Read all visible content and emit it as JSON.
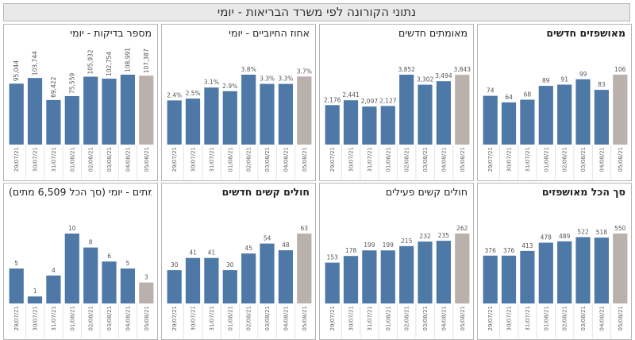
{
  "page": {
    "title": "נתוני הקורונה לפי משרד הבריאות - יומי"
  },
  "colors": {
    "bar": "#4e79a7",
    "last_bar": "#bab0ac",
    "title_bg": "#e9e9e9"
  },
  "chart_data": [
    {
      "type": "bar",
      "title": "מאושפזים חדשים",
      "title_bold": true,
      "categories": [
        "29/07/21",
        "30/07/21",
        "31/07/21",
        "01/08/21",
        "02/08/21",
        "03/08/21",
        "04/08/21",
        "05/08/21"
      ],
      "values": [
        74,
        64,
        68,
        89,
        91,
        99,
        83,
        106
      ],
      "labels": [
        "74",
        "64",
        "68",
        "89",
        "91",
        "99",
        "83",
        "106"
      ],
      "highlight_last": true
    },
    {
      "type": "bar",
      "title": "מאומתים חדשים",
      "title_bold": false,
      "categories": [
        "29/07/21",
        "30/07/21",
        "31/07/21",
        "01/08/21",
        "02/08/21",
        "03/08/21",
        "04/08/21",
        "05/08/21"
      ],
      "values": [
        2176,
        2441,
        2097,
        2127,
        3852,
        3302,
        3494,
        3843
      ],
      "labels": [
        "2,176",
        "2,441",
        "2,097",
        "2,127",
        "3,852",
        "3,302",
        "3,494",
        "3,843"
      ],
      "highlight_last": true
    },
    {
      "type": "bar",
      "title": "אחוז החיוביים - יומי",
      "title_bold": false,
      "categories": [
        "29/07/21",
        "30/07/21",
        "31/07/21",
        "01/08/21",
        "02/08/21",
        "03/08/21",
        "04/08/21",
        "05/08/21"
      ],
      "values": [
        2.4,
        2.5,
        3.1,
        2.9,
        3.8,
        3.3,
        3.3,
        3.7
      ],
      "labels": [
        "2.4%",
        "2.5%",
        "3.1%",
        "2.9%",
        "3.8%",
        "3.3%",
        "3.3%",
        "3.7%"
      ],
      "highlight_last": true
    },
    {
      "type": "bar",
      "title": "מספר בדיקות - יומי",
      "title_bold": false,
      "categories": [
        "29/07/21",
        "30/07/21",
        "31/07/21",
        "01/08/21",
        "02/08/21",
        "03/08/21",
        "04/08/21",
        "05/08/21"
      ],
      "values": [
        95044,
        103744,
        69422,
        75559,
        105932,
        102754,
        108991,
        107387
      ],
      "labels": [
        "95,044",
        "103,744",
        "69,422",
        "75,559",
        "105,932",
        "102,754",
        "108,991",
        "107,387"
      ],
      "labels_rotated": true,
      "highlight_last": true
    },
    {
      "type": "bar",
      "title": "סך הכל מאושפזים",
      "title_bold": true,
      "categories": [
        "29/07/21",
        "30/07/21",
        "31/07/21",
        "01/08/21",
        "02/08/21",
        "03/08/21",
        "04/08/21",
        "05/08/21"
      ],
      "values": [
        376,
        376,
        413,
        478,
        489,
        522,
        518,
        550
      ],
      "labels": [
        "376",
        "376",
        "413",
        "478",
        "489",
        "522",
        "518",
        "550"
      ],
      "highlight_last": true
    },
    {
      "type": "bar",
      "title": "חולים קשים פעילים",
      "title_bold": false,
      "categories": [
        "29/07/21",
        "30/07/21",
        "31/07/21",
        "01/08/21",
        "02/08/21",
        "03/08/21",
        "04/08/21",
        "05/08/21"
      ],
      "values": [
        153,
        178,
        199,
        199,
        215,
        232,
        235,
        262
      ],
      "labels": [
        "153",
        "178",
        "199",
        "199",
        "215",
        "232",
        "235",
        "262"
      ],
      "highlight_last": true
    },
    {
      "type": "bar",
      "title": "חולים קשים חדשים",
      "title_bold": true,
      "categories": [
        "29/07/21",
        "30/07/21",
        "31/07/21",
        "01/08/21",
        "02/08/21",
        "03/08/21",
        "04/08/21",
        "05/08/21"
      ],
      "values": [
        30,
        41,
        41,
        30,
        45,
        54,
        48,
        63
      ],
      "labels": [
        "30",
        "41",
        "41",
        "30",
        "45",
        "54",
        "48",
        "63"
      ],
      "highlight_last": true
    },
    {
      "type": "bar",
      "title": "מתים - יומי (סך הכל 6,509 מתים)",
      "title_bold": false,
      "categories": [
        "29/07/21",
        "30/07/21",
        "31/07/21",
        "01/08/21",
        "02/08/21",
        "03/08/21",
        "04/08/21",
        "05/08/21"
      ],
      "values": [
        5,
        1,
        4,
        10,
        8,
        6,
        5,
        3
      ],
      "labels": [
        "5",
        "1",
        "4",
        "10",
        "8",
        "6",
        "5",
        "3"
      ],
      "highlight_last": true
    }
  ]
}
